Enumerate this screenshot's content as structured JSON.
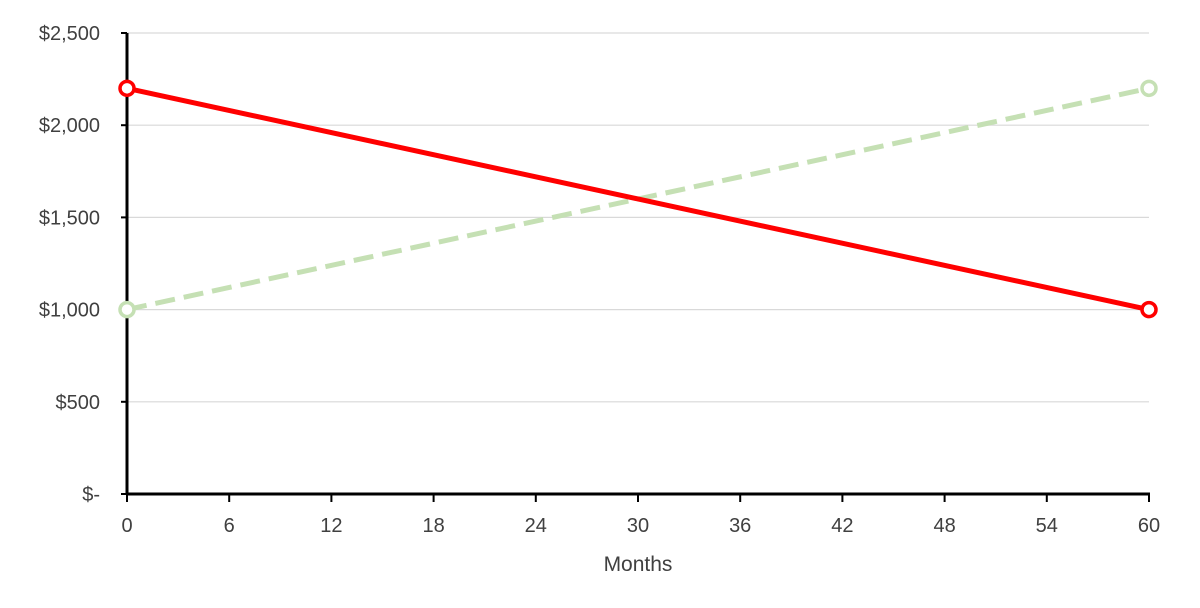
{
  "chart_data": {
    "type": "line",
    "title": "",
    "xlabel": "Months",
    "ylabel": "",
    "xlim": [
      0,
      60
    ],
    "ylim": [
      0,
      2500
    ],
    "x_ticks": [
      0,
      6,
      12,
      18,
      24,
      30,
      36,
      42,
      48,
      54,
      60
    ],
    "x_tick_labels": [
      "0",
      "6",
      "12",
      "18",
      "24",
      "30",
      "36",
      "42",
      "48",
      "54",
      "60"
    ],
    "y_ticks": [
      0,
      500,
      1000,
      1500,
      2000,
      2500
    ],
    "y_tick_labels": [
      "$-",
      "$500",
      "$1,000",
      "$1,500",
      "$2,000",
      "$2,500"
    ],
    "grid": true,
    "legend": "none",
    "series": [
      {
        "x": [
          0,
          60
        ],
        "values": [
          2200,
          1000
        ],
        "color": "#ff0000",
        "dash": "solid"
      },
      {
        "x": [
          0,
          60
        ],
        "values": [
          1000,
          2200
        ],
        "color": "#c5e0b4",
        "dash": "dashed"
      }
    ]
  }
}
